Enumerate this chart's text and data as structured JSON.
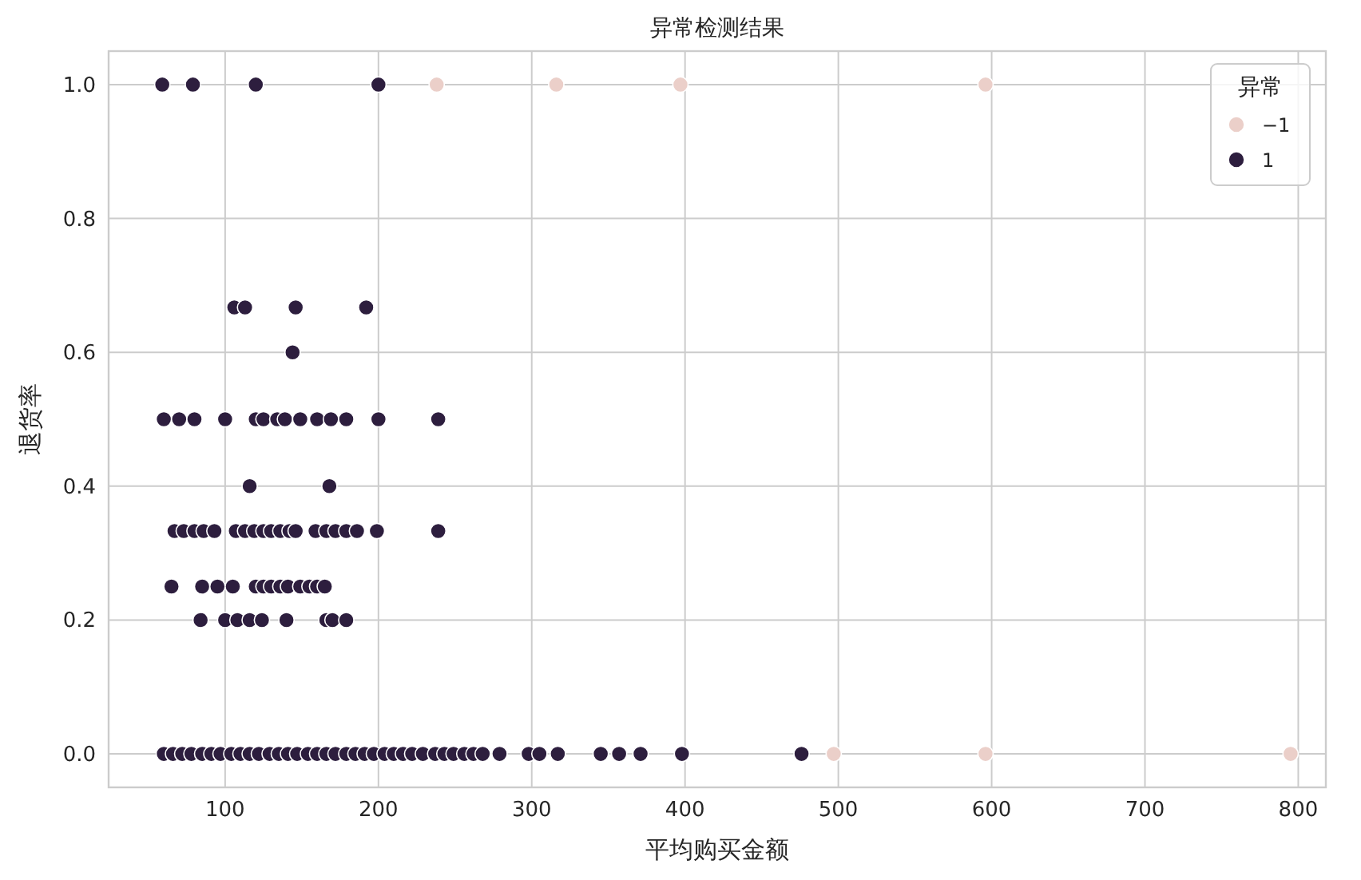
{
  "chart_data": {
    "type": "scatter",
    "title": "异常检测结果",
    "xlabel": "平均购买金额",
    "ylabel": "退货率",
    "legend_title": "异常",
    "xlim": [
      24,
      818
    ],
    "ylim": [
      -0.05,
      1.05
    ],
    "xticks": [
      100,
      200,
      300,
      400,
      500,
      600,
      700,
      800
    ],
    "yticks": [
      {
        "value": 0,
        "label": "0.0"
      },
      {
        "value": 0.2,
        "label": "0.2"
      },
      {
        "value": 0.4,
        "label": "0.4"
      },
      {
        "value": 0.6,
        "label": "0.6"
      },
      {
        "value": 0.8,
        "label": "0.8"
      },
      {
        "value": 1,
        "label": "1.0"
      }
    ],
    "grid": true,
    "legend": "top right",
    "marker": "circle",
    "series": [
      {
        "name": "−1",
        "color": "#ebcfc9",
        "x": [
          238,
          316,
          397,
          596,
          497,
          596,
          795
        ],
        "values": [
          1,
          1,
          1,
          1,
          0,
          0,
          0
        ]
      },
      {
        "name": "1",
        "color": "#2d1e3e",
        "x": [
          59,
          79,
          120,
          200,
          106,
          113,
          146,
          192,
          144,
          60,
          70,
          80,
          100,
          120,
          125,
          134,
          139,
          149,
          160,
          169,
          179,
          200,
          239,
          116,
          168,
          67,
          73,
          80,
          86,
          93,
          107,
          113,
          119,
          125,
          130,
          136,
          142,
          146,
          159,
          166,
          172,
          179,
          186,
          199,
          239,
          65,
          85,
          95,
          105,
          120,
          125,
          130,
          136,
          141,
          149,
          155,
          160,
          165,
          84,
          100,
          108,
          116,
          124,
          140,
          166,
          170,
          179,
          60,
          66,
          72,
          78,
          85,
          91,
          97,
          104,
          110,
          116,
          122,
          129,
          135,
          141,
          147,
          154,
          160,
          166,
          172,
          179,
          185,
          191,
          197,
          204,
          210,
          216,
          222,
          229,
          237,
          243,
          249,
          256,
          262,
          268,
          279,
          298,
          305,
          317,
          345,
          357,
          371,
          398,
          476
        ],
        "values": [
          1,
          1,
          1,
          1,
          0.667,
          0.667,
          0.667,
          0.667,
          0.6,
          0.5,
          0.5,
          0.5,
          0.5,
          0.5,
          0.5,
          0.5,
          0.5,
          0.5,
          0.5,
          0.5,
          0.5,
          0.5,
          0.5,
          0.4,
          0.4,
          0.333,
          0.333,
          0.333,
          0.333,
          0.333,
          0.333,
          0.333,
          0.333,
          0.333,
          0.333,
          0.333,
          0.333,
          0.333,
          0.333,
          0.333,
          0.333,
          0.333,
          0.333,
          0.333,
          0.333,
          0.25,
          0.25,
          0.25,
          0.25,
          0.25,
          0.25,
          0.25,
          0.25,
          0.25,
          0.25,
          0.25,
          0.25,
          0.25,
          0.2,
          0.2,
          0.2,
          0.2,
          0.2,
          0.2,
          0.2,
          0.2,
          0.2,
          0,
          0,
          0,
          0,
          0,
          0,
          0,
          0,
          0,
          0,
          0,
          0,
          0,
          0,
          0,
          0,
          0,
          0,
          0,
          0,
          0,
          0,
          0,
          0,
          0,
          0,
          0,
          0,
          0,
          0,
          0,
          0,
          0,
          0,
          0,
          0,
          0,
          0,
          0,
          0,
          0,
          0,
          0
        ]
      }
    ]
  }
}
